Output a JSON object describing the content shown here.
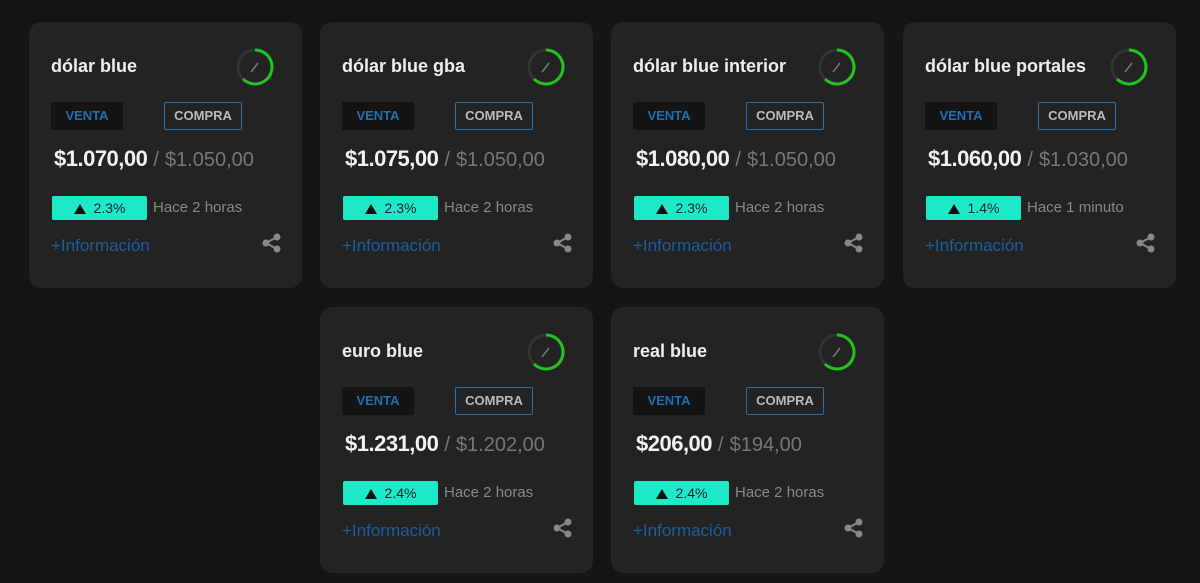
{
  "labels": {
    "venta": "VENTA",
    "compra": "COMPRA",
    "separator": "/",
    "info": "+Información"
  },
  "cards": [
    {
      "title": "dólar blue",
      "sell": "$1.070,00",
      "buy": "$1.050,00",
      "change": "2.3%",
      "time": "Hace 2 horas"
    },
    {
      "title": "dólar blue gba",
      "sell": "$1.075,00",
      "buy": "$1.050,00",
      "change": "2.3%",
      "time": "Hace 2 horas"
    },
    {
      "title": "dólar blue interior",
      "sell": "$1.080,00",
      "buy": "$1.050,00",
      "change": "2.3%",
      "time": "Hace 2 horas"
    },
    {
      "title": "dólar blue portales",
      "sell": "$1.060,00",
      "buy": "$1.030,00",
      "change": "1.4%",
      "time": "Hace 1 minuto"
    },
    {
      "title": "euro blue",
      "sell": "$1.231,00",
      "buy": "$1.202,00",
      "change": "2.4%",
      "time": "Hace 2 horas"
    },
    {
      "title": "real blue",
      "sell": "$206,00",
      "buy": "$194,00",
      "change": "2.4%",
      "time": "Hace 2 horas"
    }
  ]
}
